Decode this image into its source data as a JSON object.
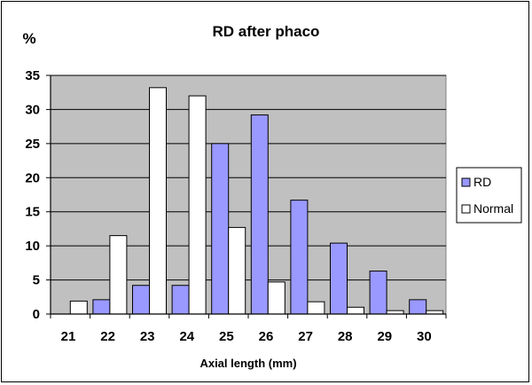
{
  "chart_data": {
    "type": "bar",
    "title": "RD after phaco",
    "y_unit_label": "%",
    "xlabel": "Axial length (mm)",
    "ylabel": "",
    "ylim": [
      0,
      35
    ],
    "yticks": [
      0,
      5,
      10,
      15,
      20,
      25,
      30,
      35
    ],
    "categories": [
      "21",
      "22",
      "23",
      "24",
      "25",
      "26",
      "27",
      "28",
      "29",
      "30"
    ],
    "grid": true,
    "legend_position": "right",
    "series": [
      {
        "name": "RD",
        "color": "#9999ff",
        "values": [
          0,
          2.1,
          4.2,
          4.2,
          25,
          29.2,
          16.7,
          10.4,
          6.3,
          2.1
        ]
      },
      {
        "name": "Normal",
        "color": "#ffffff",
        "values": [
          1.9,
          11.5,
          33.2,
          32,
          12.7,
          4.7,
          1.8,
          1,
          0.5,
          0.5
        ]
      }
    ],
    "plot_background": "#c0c0c0"
  }
}
